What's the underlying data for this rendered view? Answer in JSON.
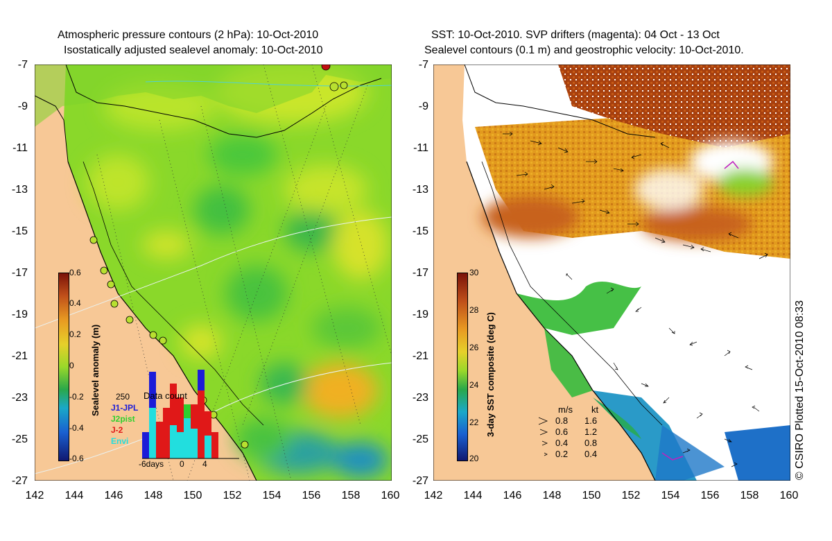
{
  "left_panel": {
    "title_line1": "Atmospheric pressure contours (2 hPa): 10-Oct-2010",
    "title_line2": "Isostatically adjusted sealevel anomaly: 10-Oct-2010",
    "colorbar": {
      "label": "Sealevel anomaly (m)",
      "ticks": [
        "0.6",
        "0.4",
        "0.2",
        "0",
        "-0.2",
        "-0.4",
        "-0.6"
      ],
      "range": [
        -0.6,
        0.6
      ]
    },
    "histogram": {
      "title": "Data count",
      "max_label": "250",
      "legend": [
        {
          "name": "J1-JPL",
          "color": "#1c1cd8"
        },
        {
          "name": "J2pist",
          "color": "#2ed02e"
        },
        {
          "name": "J-2",
          "color": "#e01818"
        },
        {
          "name": "Envi",
          "color": "#22dede"
        }
      ],
      "x_ticks": [
        "-6days",
        "0",
        "4"
      ]
    }
  },
  "right_panel": {
    "title_line1": "SST: 10-Oct-2010. SVP drifters (magenta): 04 Oct - 13 Oct",
    "title_line2": "Sealevel contours (0.1 m) and geostrophic velocity: 10-Oct-2010.",
    "colorbar": {
      "label": "3-day SST composite (deg C)",
      "ticks": [
        "30",
        "28",
        "26",
        "24",
        "22",
        "20"
      ],
      "range": [
        20,
        30
      ]
    },
    "speed_legend": {
      "header_ms": "m/s",
      "header_kt": "kt",
      "rows": [
        {
          "ms": "0.8",
          "kt": "1.6"
        },
        {
          "ms": "0.6",
          "kt": "1.2"
        },
        {
          "ms": "0.4",
          "kt": "0.8"
        },
        {
          "ms": "0.2",
          "kt": "0.4"
        }
      ]
    }
  },
  "axes": {
    "lat_ticks": [
      "-7",
      "-9",
      "-11",
      "-13",
      "-15",
      "-17",
      "-19",
      "-21",
      "-23",
      "-25",
      "-27"
    ],
    "lon_ticks": [
      "142",
      "144",
      "146",
      "148",
      "150",
      "152",
      "154",
      "156",
      "158",
      "160"
    ],
    "lat_range": [
      -27,
      -7
    ],
    "lon_range": [
      142,
      160
    ]
  },
  "credit": "© CSIRO Plotted 15-Oct-2010 08:33",
  "colors": {
    "land": "#f7c896",
    "sla_green": "#7dd82a",
    "sla_yellow": "#cfe62c",
    "sst_orange": "#e29a1e",
    "sst_brown": "#a8400e",
    "cloud": "#ffffff"
  }
}
